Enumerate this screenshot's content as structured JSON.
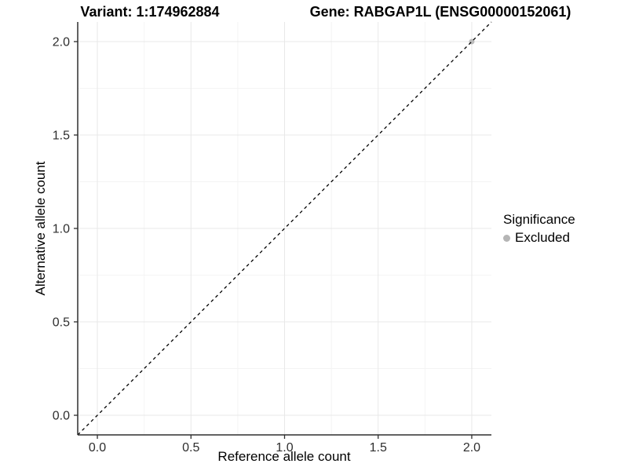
{
  "titles": {
    "variant": "Variant: 1:174962884",
    "gene": "Gene: RABGAP1L (ENSG00000152061)"
  },
  "chart_data": {
    "type": "scatter",
    "title_left": "Variant: 1:174962884",
    "title_right": "Gene: RABGAP1L (ENSG00000152061)",
    "xlabel": "Reference allele count",
    "ylabel": "Alternative allele count",
    "xlim": [
      -0.105,
      2.105
    ],
    "ylim": [
      -0.105,
      2.105
    ],
    "x_ticks": [
      0.0,
      0.5,
      1.0,
      1.5,
      2.0
    ],
    "x_tick_labels": [
      "0.0",
      "0.5",
      "1.0",
      "1.5",
      "2.0"
    ],
    "y_ticks": [
      0.0,
      0.5,
      1.0,
      1.5,
      2.0
    ],
    "y_tick_labels": [
      "0.0",
      "0.5",
      "1.0",
      "1.5",
      "2.0"
    ],
    "minor_ticks": [
      0.25,
      0.75,
      1.25,
      1.75
    ],
    "grid": true,
    "reference_line": {
      "type": "identity",
      "style": "dashed",
      "from": [
        -0.105,
        -0.105
      ],
      "to": [
        2.105,
        2.105
      ]
    },
    "series": [
      {
        "name": "Excluded",
        "points": [
          [
            2.0,
            2.0
          ]
        ],
        "color": "#bdbdbd"
      }
    ],
    "legend": {
      "title": "Significance",
      "position": "right",
      "items": [
        {
          "label": "Excluded",
          "color": "#b5b5b5"
        }
      ]
    }
  },
  "colors": {
    "background": "#ffffff",
    "grid_major": "#e8e8e8",
    "grid_minor": "#f4f4f4",
    "axis_line": "#2f2f2f",
    "tick_text": "#2e2e2e",
    "dashed_line": "#000000",
    "point": "#bdbdbd"
  }
}
